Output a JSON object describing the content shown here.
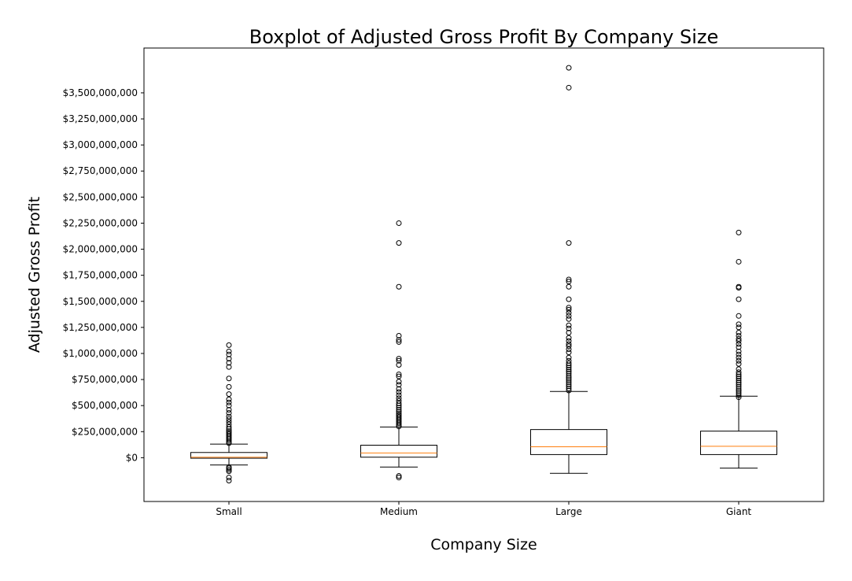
{
  "chart_data": {
    "type": "boxplot",
    "title": "Boxplot of Adjusted Gross Profit By Company Size",
    "xlabel": "Company Size",
    "ylabel": "Adjusted Gross Profit",
    "ylim": [
      -420000000,
      3930000000
    ],
    "y_ticks": [
      0,
      250000000,
      500000000,
      750000000,
      1000000000,
      1250000000,
      1500000000,
      1750000000,
      2000000000,
      2250000000,
      2500000000,
      2750000000,
      3000000000,
      3250000000,
      3500000000
    ],
    "y_tick_labels": [
      "$0",
      "$250,000,000",
      "$500,000,000",
      "$750,000,000",
      "$1,000,000,000",
      "$1,250,000,000",
      "$1,500,000,000",
      "$1,750,000,000",
      "$2,000,000,000",
      "$2,250,000,000",
      "$2,500,000,000",
      "$2,750,000,000",
      "$3,000,000,000",
      "$3,250,000,000",
      "$3,500,000,000"
    ],
    "grid": false,
    "median_color": "#ff7f0e",
    "box_color": "#000000",
    "categories": [
      "Small",
      "Medium",
      "Large",
      "Giant"
    ],
    "boxes": [
      {
        "category": "Small",
        "whisker_low": -70000000,
        "q1": -5000000,
        "median": 5000000,
        "q3": 50000000,
        "whisker_high": 130000000,
        "outliers": [
          -220000000,
          -190000000,
          -130000000,
          -115000000,
          -100000000,
          -90000000,
          140000000,
          150000000,
          165000000,
          180000000,
          195000000,
          210000000,
          225000000,
          240000000,
          255000000,
          275000000,
          295000000,
          320000000,
          345000000,
          370000000,
          395000000,
          430000000,
          460000000,
          500000000,
          530000000,
          560000000,
          610000000,
          680000000,
          760000000,
          870000000,
          910000000,
          950000000,
          990000000,
          1020000000,
          1080000000
        ]
      },
      {
        "category": "Medium",
        "whisker_low": -90000000,
        "q1": 5000000,
        "median": 45000000,
        "q3": 120000000,
        "whisker_high": 295000000,
        "outliers": [
          -190000000,
          -175000000,
          300000000,
          315000000,
          330000000,
          345000000,
          360000000,
          375000000,
          390000000,
          405000000,
          420000000,
          440000000,
          460000000,
          480000000,
          500000000,
          520000000,
          545000000,
          570000000,
          600000000,
          630000000,
          660000000,
          700000000,
          730000000,
          780000000,
          800000000,
          890000000,
          930000000,
          950000000,
          1110000000,
          1130000000,
          1170000000,
          1640000000,
          2060000000,
          2250000000
        ]
      },
      {
        "category": "Large",
        "whisker_low": -150000000,
        "q1": 30000000,
        "median": 105000000,
        "q3": 270000000,
        "whisker_high": 635000000,
        "outliers": [
          645000000,
          665000000,
          685000000,
          705000000,
          725000000,
          745000000,
          765000000,
          785000000,
          805000000,
          825000000,
          845000000,
          865000000,
          885000000,
          905000000,
          930000000,
          960000000,
          1010000000,
          1040000000,
          1070000000,
          1090000000,
          1120000000,
          1150000000,
          1200000000,
          1240000000,
          1270000000,
          1330000000,
          1360000000,
          1390000000,
          1420000000,
          1440000000,
          1520000000,
          1640000000,
          1690000000,
          1710000000,
          2060000000,
          3550000000,
          3740000000
        ]
      },
      {
        "category": "Giant",
        "whisker_low": -100000000,
        "q1": 30000000,
        "median": 110000000,
        "q3": 255000000,
        "whisker_high": 590000000,
        "outliers": [
          580000000,
          600000000,
          620000000,
          640000000,
          660000000,
          680000000,
          700000000,
          720000000,
          740000000,
          760000000,
          780000000,
          800000000,
          820000000,
          850000000,
          900000000,
          930000000,
          960000000,
          990000000,
          1020000000,
          1060000000,
          1090000000,
          1120000000,
          1140000000,
          1170000000,
          1200000000,
          1250000000,
          1280000000,
          1360000000,
          1520000000,
          1630000000,
          1640000000,
          1880000000,
          2160000000
        ]
      }
    ]
  }
}
